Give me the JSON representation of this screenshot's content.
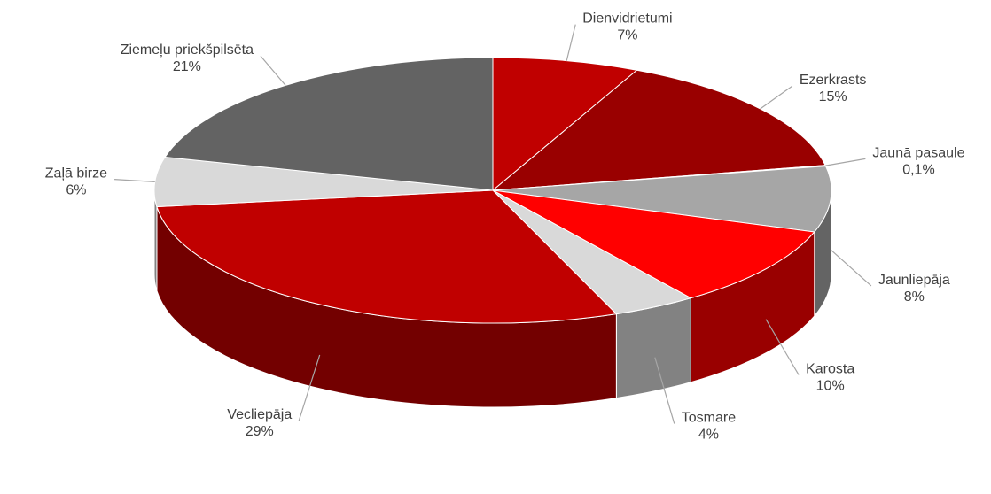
{
  "chart_data": {
    "type": "pie3d",
    "categories": [
      "Dienvidrietumi",
      "Ezerkrasts",
      "Jaunā pasaule",
      "Jaunliepāja",
      "Karosta",
      "Tosmare",
      "Vecliepāja",
      "Zaļā birze",
      "Ziemeļu priekšpilsēta"
    ],
    "values": [
      7,
      15,
      0.1,
      8,
      10,
      4,
      29,
      6,
      21
    ],
    "value_labels": [
      "7%",
      "15%",
      "0,1%",
      "8%",
      "10%",
      "4%",
      "29%",
      "6%",
      "21%"
    ],
    "colors": [
      "#c00000",
      "#990000",
      "#7f7f7f",
      "#a6a6a6",
      "#ff0000",
      "#d9d9d9",
      "#c00000",
      "#d9d9d9",
      "#636363"
    ]
  }
}
